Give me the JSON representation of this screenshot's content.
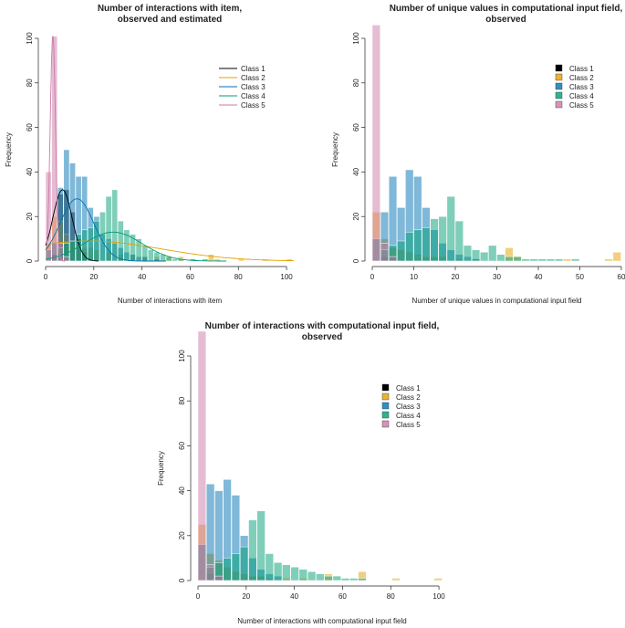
{
  "chart_data": [
    {
      "type": "bar",
      "title_lines": [
        "Number of interactions with item,",
        "observed and estimated"
      ],
      "xlabel": "Number of interactions with item",
      "ylabel": "Frequency",
      "xlim": [
        0,
        103
      ],
      "ylim": [
        0,
        100
      ],
      "xticks": [
        0,
        20,
        40,
        60,
        80,
        100
      ],
      "yticks": [
        0,
        20,
        40,
        60,
        80,
        100
      ],
      "bin_width": 2.5,
      "legend_style": "line",
      "legend": [
        "Class 1",
        "Class 2",
        "Class 3",
        "Class 4",
        "Class 5"
      ],
      "series": [
        {
          "name": "Class 1",
          "color": "#000000",
          "bars": [
            [
              2.5,
              3
            ],
            [
              5,
              30
            ],
            [
              7.5,
              32
            ],
            [
              10,
              22
            ],
            [
              12.5,
              10
            ],
            [
              15,
              4
            ]
          ]
        },
        {
          "name": "Class 2",
          "color": "#E69F00",
          "bars": [
            [
              0,
              8
            ],
            [
              2.5,
              20
            ],
            [
              5,
              18
            ],
            [
              7.5,
              12
            ],
            [
              10,
              9
            ],
            [
              12.5,
              7
            ],
            [
              15,
              6
            ],
            [
              17.5,
              6
            ],
            [
              20,
              5
            ],
            [
              25,
              4
            ],
            [
              30,
              3
            ],
            [
              35,
              3
            ],
            [
              40,
              2
            ],
            [
              45,
              2
            ],
            [
              50,
              2
            ],
            [
              55,
              2
            ],
            [
              60,
              1
            ],
            [
              67.5,
              3
            ],
            [
              70,
              1
            ],
            [
              80,
              1
            ],
            [
              90,
              1
            ],
            [
              100,
              1
            ]
          ]
        },
        {
          "name": "Class 3",
          "color": "#0072B2",
          "bars": [
            [
              0,
              5
            ],
            [
              2.5,
              8
            ],
            [
              5,
              33
            ],
            [
              7.5,
              50
            ],
            [
              10,
              44
            ],
            [
              12.5,
              38
            ],
            [
              15,
              38
            ],
            [
              17.5,
              24
            ],
            [
              20,
              20
            ],
            [
              22.5,
              12
            ],
            [
              25,
              10
            ],
            [
              27.5,
              8
            ],
            [
              30,
              6
            ],
            [
              32.5,
              4
            ],
            [
              35,
              3
            ],
            [
              37.5,
              2
            ],
            [
              40,
              2
            ],
            [
              45,
              1
            ]
          ]
        },
        {
          "name": "Class 4",
          "color": "#009E73",
          "bars": [
            [
              5,
              6
            ],
            [
              7.5,
              8
            ],
            [
              10,
              9
            ],
            [
              12.5,
              12
            ],
            [
              15,
              14
            ],
            [
              17.5,
              15
            ],
            [
              20,
              18
            ],
            [
              22.5,
              22
            ],
            [
              25,
              29
            ],
            [
              27.5,
              32
            ],
            [
              30,
              18
            ],
            [
              32.5,
              14
            ],
            [
              35,
              12
            ],
            [
              37.5,
              10
            ],
            [
              40,
              7
            ],
            [
              42.5,
              5
            ],
            [
              45,
              4
            ],
            [
              47.5,
              3
            ],
            [
              50,
              2
            ],
            [
              52.5,
              1
            ],
            [
              55,
              1
            ],
            [
              60,
              1
            ],
            [
              65,
              1
            ]
          ]
        },
        {
          "name": "Class 5",
          "color": "#CC79A7",
          "bars": [
            [
              0,
              40
            ],
            [
              2.5,
              101
            ],
            [
              5,
              8
            ],
            [
              7.5,
              2
            ]
          ]
        }
      ]
    },
    {
      "type": "bar",
      "title_lines": [
        "Number of unique values in computational input field,",
        "observed"
      ],
      "xlabel": "Number of unique values in computational input field",
      "ylabel": "Frequency",
      "xlim": [
        0,
        60
      ],
      "ylim": [
        0,
        100
      ],
      "xticks": [
        0,
        10,
        20,
        30,
        40,
        50,
        60
      ],
      "yticks": [
        0,
        20,
        40,
        60,
        80,
        100
      ],
      "bin_width": 2,
      "legend_style": "box",
      "legend": [
        "Class 1",
        "Class 2",
        "Class 3",
        "Class 4",
        "Class 5"
      ],
      "series": [
        {
          "name": "Class 1",
          "color": "#000000",
          "bars": [
            [
              2,
              2
            ],
            [
              4,
              2
            ]
          ]
        },
        {
          "name": "Class 2",
          "color": "#E69F00",
          "bars": [
            [
              0,
              22
            ],
            [
              2,
              10
            ],
            [
              4,
              6
            ],
            [
              6,
              5
            ],
            [
              8,
              4
            ],
            [
              10,
              3
            ],
            [
              12,
              2
            ],
            [
              14,
              2
            ],
            [
              16,
              2
            ],
            [
              20,
              1
            ],
            [
              24,
              1
            ],
            [
              32,
              6
            ],
            [
              34,
              2
            ],
            [
              46,
              1
            ],
            [
              56,
              1
            ],
            [
              58,
              4
            ]
          ]
        },
        {
          "name": "Class 3",
          "color": "#0072B2",
          "bars": [
            [
              0,
              10
            ],
            [
              2,
              22
            ],
            [
              4,
              38
            ],
            [
              6,
              24
            ],
            [
              8,
              41
            ],
            [
              10,
              38
            ],
            [
              12,
              24
            ],
            [
              14,
              14
            ],
            [
              16,
              8
            ],
            [
              18,
              5
            ],
            [
              20,
              3
            ],
            [
              22,
              2
            ],
            [
              24,
              1
            ]
          ]
        },
        {
          "name": "Class 4",
          "color": "#009E73",
          "bars": [
            [
              2,
              5
            ],
            [
              4,
              7
            ],
            [
              6,
              9
            ],
            [
              8,
              13
            ],
            [
              10,
              14
            ],
            [
              12,
              15
            ],
            [
              14,
              19
            ],
            [
              16,
              20
            ],
            [
              18,
              29
            ],
            [
              20,
              18
            ],
            [
              22,
              7
            ],
            [
              24,
              5
            ],
            [
              26,
              4
            ],
            [
              28,
              7
            ],
            [
              30,
              3
            ],
            [
              32,
              2
            ],
            [
              34,
              2
            ],
            [
              36,
              1
            ],
            [
              38,
              1
            ],
            [
              40,
              1
            ],
            [
              42,
              1
            ],
            [
              44,
              1
            ],
            [
              48,
              1
            ]
          ]
        },
        {
          "name": "Class 5",
          "color": "#CC79A7",
          "bars": [
            [
              0,
              106
            ],
            [
              2,
              8
            ],
            [
              4,
              2
            ]
          ]
        }
      ]
    },
    {
      "type": "bar",
      "title_lines": [
        "Number of interactions with computational input field,",
        "observed"
      ],
      "xlabel": "Number of interactions with computational input field",
      "ylabel": "Frequency",
      "xlim": [
        0,
        103
      ],
      "ylim": [
        0,
        100
      ],
      "xticks": [
        0,
        20,
        40,
        60,
        80,
        100
      ],
      "yticks": [
        0,
        20,
        40,
        60,
        80,
        100
      ],
      "bin_width": 3.5,
      "legend_style": "box",
      "legend": [
        "Class 1",
        "Class 2",
        "Class 3",
        "Class 4",
        "Class 5"
      ],
      "series": [
        {
          "name": "Class 1",
          "color": "#000000",
          "bars": [
            [
              3.5,
              3
            ],
            [
              7,
              2
            ]
          ]
        },
        {
          "name": "Class 2",
          "color": "#E69F00",
          "bars": [
            [
              0,
              25
            ],
            [
              3.5,
              12
            ],
            [
              7,
              9
            ],
            [
              10.5,
              6
            ],
            [
              14,
              4
            ],
            [
              17.5,
              3
            ],
            [
              21,
              2
            ],
            [
              24.5,
              2
            ],
            [
              28,
              1
            ],
            [
              35,
              1
            ],
            [
              42,
              1
            ],
            [
              52.5,
              3
            ],
            [
              66.5,
              4
            ],
            [
              80.5,
              1
            ],
            [
              98,
              1
            ]
          ]
        },
        {
          "name": "Class 3",
          "color": "#0072B2",
          "bars": [
            [
              0,
              16
            ],
            [
              3.5,
              43
            ],
            [
              7,
              40
            ],
            [
              10.5,
              45
            ],
            [
              14,
              38
            ],
            [
              17.5,
              20
            ],
            [
              21,
              10
            ],
            [
              24.5,
              5
            ],
            [
              28,
              3
            ],
            [
              31.5,
              2
            ]
          ]
        },
        {
          "name": "Class 4",
          "color": "#009E73",
          "bars": [
            [
              3.5,
              6
            ],
            [
              7,
              8
            ],
            [
              10.5,
              10
            ],
            [
              14,
              12
            ],
            [
              17.5,
              15
            ],
            [
              21,
              27
            ],
            [
              24.5,
              31
            ],
            [
              28,
              12
            ],
            [
              31.5,
              8
            ],
            [
              35,
              7
            ],
            [
              38.5,
              6
            ],
            [
              42,
              5
            ],
            [
              45.5,
              4
            ],
            [
              49,
              3
            ],
            [
              52.5,
              2
            ],
            [
              56,
              2
            ],
            [
              59.5,
              1
            ],
            [
              63,
              1
            ],
            [
              66.5,
              1
            ]
          ]
        },
        {
          "name": "Class 5",
          "color": "#CC79A7",
          "bars": [
            [
              0,
              111
            ],
            [
              3.5,
              7
            ],
            [
              7,
              2
            ]
          ]
        }
      ]
    }
  ]
}
